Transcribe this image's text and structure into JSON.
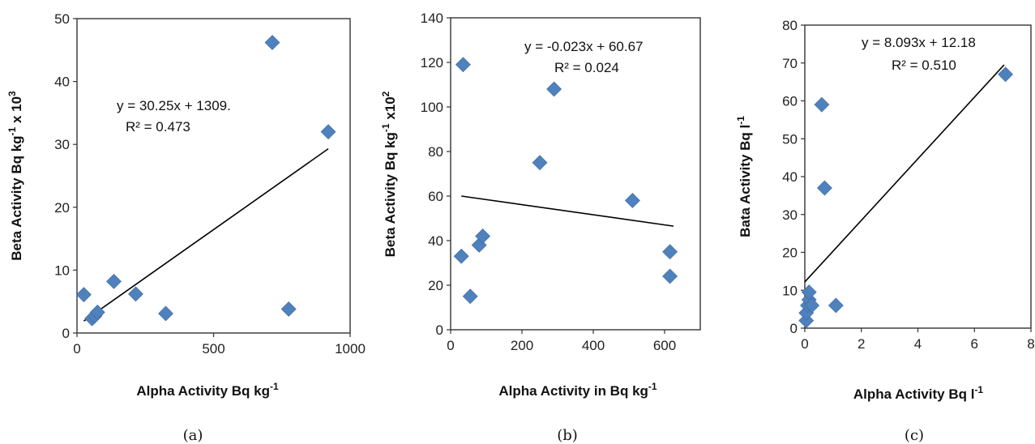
{
  "chart_data": [
    {
      "type": "scatter",
      "panel_label": "(a)",
      "xlabel": "Alpha Activity Bq kg",
      "xlabel_sup": "-1",
      "xlabel_tail": "",
      "ylabel": "Beta Activity Bq kg",
      "ylabel_sup": "-1",
      "ylabel_tail": " x 10",
      "ylabel_sup2": "3",
      "xlim": [
        0,
        1000
      ],
      "ylim": [
        0,
        50
      ],
      "xticks": [
        0,
        500,
        1000
      ],
      "yticks": [
        0,
        10,
        20,
        30,
        40,
        50
      ],
      "marker_color": "#4F81BD",
      "points": [
        [
          25,
          6.1
        ],
        [
          55,
          2.3
        ],
        [
          65,
          2.7
        ],
        [
          75,
          3.3
        ],
        [
          135,
          8.2
        ],
        [
          215,
          6.2
        ],
        [
          325,
          3.1
        ],
        [
          715,
          46.2
        ],
        [
          775,
          3.8
        ],
        [
          920,
          32.0
        ]
      ],
      "trendline": {
        "x": [
          25,
          920
        ],
        "y": [
          1.9,
          29.3
        ]
      },
      "equation": "y = 30.25x + 1309.",
      "r2": "R² = 0.473",
      "equation_pos": [
        0.35,
        0.7
      ],
      "r2_pos": [
        0.38,
        0.64
      ]
    },
    {
      "type": "scatter",
      "panel_label": "(b)",
      "xlabel": "Alpha Activity in Bq kg",
      "xlabel_sup": "-1",
      "xlabel_tail": "",
      "ylabel": "Beta Activity Bq kg",
      "ylabel_sup": "-1",
      "ylabel_tail": " x10",
      "ylabel_sup2": "2",
      "xlim": [
        0,
        700
      ],
      "ylim": [
        0,
        140
      ],
      "xticks": [
        0,
        200,
        400,
        600
      ],
      "yticks": [
        0,
        20,
        40,
        60,
        80,
        100,
        120,
        140
      ],
      "marker_color": "#4F81BD",
      "points": [
        [
          35,
          119
        ],
        [
          30,
          33
        ],
        [
          55,
          15
        ],
        [
          80,
          38
        ],
        [
          90,
          42
        ],
        [
          250,
          75
        ],
        [
          290,
          108
        ],
        [
          510,
          58
        ],
        [
          615,
          35
        ],
        [
          615,
          24
        ]
      ],
      "trendline": {
        "x": [
          30,
          625
        ],
        "y": [
          60,
          46.5
        ]
      },
      "equation": "y = -0.023x + 60.67",
      "r2": "R² = 0.024",
      "equation_pos": [
        0.5,
        0.91
      ],
      "r2_pos": [
        0.58,
        0.85
      ]
    },
    {
      "type": "scatter",
      "panel_label": "(c)",
      "xlabel": "Alpha Activity Bq l",
      "xlabel_sup": "-1",
      "xlabel_tail": "",
      "ylabel": "Bata Activity Bq l",
      "ylabel_sup": "-1",
      "ylabel_tail": "",
      "ylabel_sup2": "",
      "xlim": [
        0,
        8
      ],
      "ylim": [
        0,
        80
      ],
      "xticks": [
        0,
        2,
        4,
        6,
        8
      ],
      "yticks": [
        0,
        10,
        20,
        30,
        40,
        50,
        60,
        70,
        80
      ],
      "marker_color": "#4F81BD",
      "points": [
        [
          0.05,
          2
        ],
        [
          0.05,
          4
        ],
        [
          0.1,
          6
        ],
        [
          0.15,
          7.5
        ],
        [
          0.15,
          9.5
        ],
        [
          0.25,
          6
        ],
        [
          0.6,
          59
        ],
        [
          0.7,
          37
        ],
        [
          1.1,
          6
        ],
        [
          7.1,
          67
        ]
      ],
      "trendline": {
        "x": [
          0,
          7.05
        ],
        "y": [
          12.2,
          69.5
        ]
      },
      "equation": "y = 8.093x + 12.18",
      "r2": "R² = 0.510",
      "equation_pos": [
        0.25,
        0.93
      ],
      "r2_pos": [
        0.38,
        0.865
      ]
    }
  ]
}
